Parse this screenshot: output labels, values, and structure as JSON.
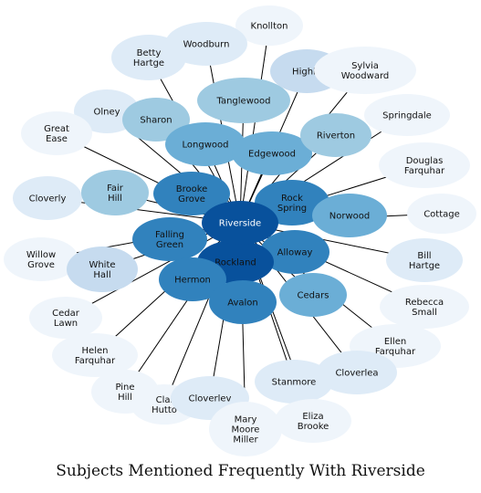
{
  "title": "Subjects Mentioned Frequently With Riverside",
  "colors": {
    "edge": "#000000",
    "level5": "#08519c",
    "level4": "#3182bd",
    "level3": "#6baed6",
    "level2": "#9ecae1",
    "level1": "#c6dbef",
    "level0": "#deebf7",
    "level00": "#eff5fb"
  },
  "hub": {
    "label": "Riverside",
    "level": "level5"
  },
  "nodes": [
    {
      "label": "Knollton",
      "level": "level00"
    },
    {
      "label": "Woodburn",
      "level": "level0"
    },
    {
      "label": "Betty\nHartge",
      "level": "level0"
    },
    {
      "label": "Highla",
      "level": "level1"
    },
    {
      "label": "Sylvia\nWoodward",
      "level": "level00"
    },
    {
      "label": "Tanglewood",
      "level": "level2"
    },
    {
      "label": "Olney",
      "level": "level0"
    },
    {
      "label": "Sharon",
      "level": "level2"
    },
    {
      "label": "Springdale",
      "level": "level00"
    },
    {
      "label": "Great\nEase",
      "level": "level00"
    },
    {
      "label": "Longwood",
      "level": "level3"
    },
    {
      "label": "Edgewood",
      "level": "level3"
    },
    {
      "label": "Riverton",
      "level": "level2"
    },
    {
      "label": "Douglas\nFarquhar",
      "level": "level00"
    },
    {
      "label": "Cloverly",
      "level": "level0"
    },
    {
      "label": "Fair\nHill",
      "level": "level2"
    },
    {
      "label": "Brooke\nGrove",
      "level": "level4"
    },
    {
      "label": "Rock\nSpring",
      "level": "level4"
    },
    {
      "label": "Norwood",
      "level": "level3"
    },
    {
      "label": "Cottage",
      "level": "level00"
    },
    {
      "label": "Falling\nGreen",
      "level": "level4"
    },
    {
      "label": "Willow\nGrove",
      "level": "level00"
    },
    {
      "label": "White\nHall",
      "level": "level1"
    },
    {
      "label": "Alloway",
      "level": "level4"
    },
    {
      "label": "Bill\nHartge",
      "level": "level0"
    },
    {
      "label": "Rockland",
      "level": "level5"
    },
    {
      "label": "Hermon",
      "level": "level4"
    },
    {
      "label": "Cedars",
      "level": "level3"
    },
    {
      "label": "Rebecca\nSmall",
      "level": "level00"
    },
    {
      "label": "Avalon",
      "level": "level4"
    },
    {
      "label": "Cedar\nLawn",
      "level": "level00"
    },
    {
      "label": "Ellen\nFarquhar",
      "level": "level00"
    },
    {
      "label": "Helen\nFarquhar",
      "level": "level00"
    },
    {
      "label": "Cloverlea",
      "level": "level0"
    },
    {
      "label": "Stanmore",
      "level": "level0"
    },
    {
      "label": "Pine\nHill",
      "level": "level00"
    },
    {
      "label": "Clai\nHutto",
      "level": "level00"
    },
    {
      "label": "Cloverlev",
      "level": "level0"
    },
    {
      "label": "Eliza\nBrooke",
      "level": "level00"
    },
    {
      "label": "Mary\nMoore\nMiller",
      "level": "level00"
    }
  ]
}
